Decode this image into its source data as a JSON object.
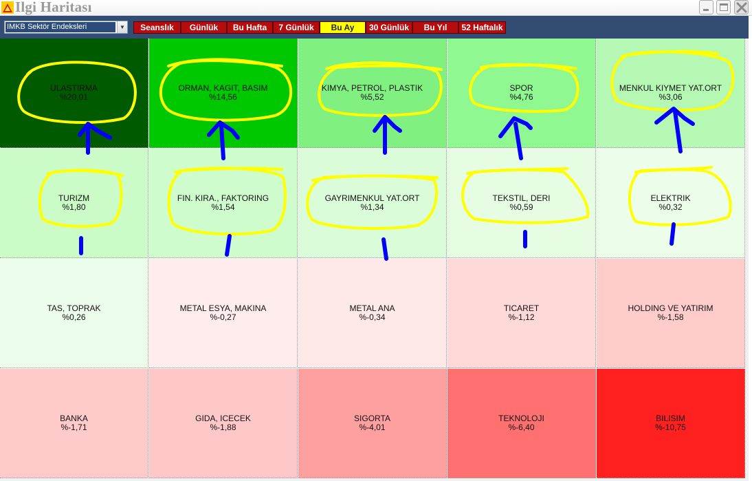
{
  "window": {
    "title": "Ilgi Haritası",
    "controls": [
      "minimize-icon",
      "maximize-icon",
      "close-icon"
    ]
  },
  "toolbar": {
    "index_select": {
      "value": "IMKB Sektör Endeksleri"
    },
    "periods": [
      "Seanslık",
      "Günlük",
      "Bu Hafta",
      "7 Günlük",
      "Bu Ay",
      "30 Günlük",
      "Bu Yıl",
      "52 Haftalık"
    ],
    "active_period": "Bu Ay"
  },
  "colors": {
    "toolbar_bg": "#324c74",
    "tab_bg": "#b50d0d",
    "tab_active_bg": "#ffff00",
    "annotation_circle": "#ffff00",
    "annotation_arrow": "#0000ff"
  },
  "heatmap": {
    "tiles": [
      {
        "name": "ULASTIRMA",
        "change": "%20,01",
        "color": "#005a00"
      },
      {
        "name": "ORMAN, KAGIT, BASIM",
        "change": "%14,56",
        "color": "#00c800"
      },
      {
        "name": "KIMYA, PETROL, PLASTIK",
        "change": "%5,52",
        "color": "#80f080"
      },
      {
        "name": "SPOR",
        "change": "%4,76",
        "color": "#90f890"
      },
      {
        "name": "MENKUL KIYMET YAT.ORT",
        "change": "%3,06",
        "color": "#b4f8b4"
      },
      {
        "name": "TURIZM",
        "change": "%1,80",
        "color": "#cbfcc8"
      },
      {
        "name": "FIN. KIRA., FAKTORING",
        "change": "%1,54",
        "color": "#cffccc"
      },
      {
        "name": "GAYRIMENKUL YAT.ORT",
        "change": "%1,34",
        "color": "#dafcd8"
      },
      {
        "name": "TEKSTIL, DERI",
        "change": "%0,59",
        "color": "#e6fde4"
      },
      {
        "name": "ELEKTRIK",
        "change": "%0,32",
        "color": "#ecfeea"
      },
      {
        "name": "TAS, TOPRAK",
        "change": "%0,26",
        "color": "#edfdec"
      },
      {
        "name": "METAL ESYA, MAKINA",
        "change": "%-0,27",
        "color": "#ffecec"
      },
      {
        "name": "METAL ANA",
        "change": "%-0,34",
        "color": "#ffe8e8"
      },
      {
        "name": "TICARET",
        "change": "%-1,12",
        "color": "#ffd8d8"
      },
      {
        "name": "HOLDING VE YATIRIM",
        "change": "%-1,58",
        "color": "#ffcccc"
      },
      {
        "name": "BANKA",
        "change": "%-1,71",
        "color": "#ffcaca"
      },
      {
        "name": "GIDA, ICECEK",
        "change": "%-1,88",
        "color": "#ffc8c8"
      },
      {
        "name": "SIGORTA",
        "change": "%-4,01",
        "color": "#ffa0a0"
      },
      {
        "name": "TEKNOLOJI",
        "change": "%-6,40",
        "color": "#ff7070"
      },
      {
        "name": "BILISIM",
        "change": "%-10,75",
        "color": "#ff2020"
      }
    ]
  }
}
